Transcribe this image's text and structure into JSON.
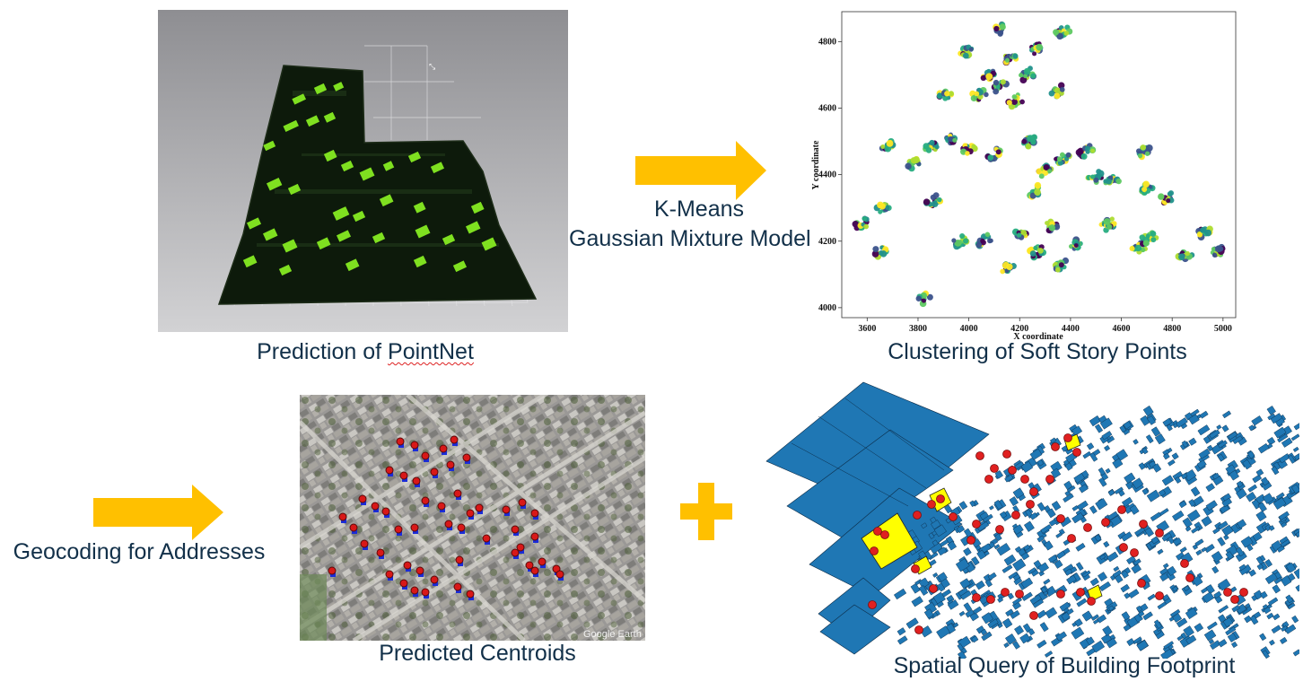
{
  "colors": {
    "arrow": "#FFC000",
    "plus": "#FFC000",
    "text": "#123049",
    "footprint": "#1F77B4",
    "highlight": "#FFFF00",
    "centroid": "#E02020",
    "prediction_green": "#7FE020"
  },
  "top_left": {
    "caption_prefix": "Prediction of ",
    "caption_word": "PointNet"
  },
  "top_arrow": {
    "label_line1": "K-Means",
    "label_line2": "Gaussian Mixture Model"
  },
  "top_right": {
    "caption": "Clustering of Soft Story Points"
  },
  "bottom_left": {
    "arrow_label": "Geocoding for Addresses"
  },
  "bottom_mid": {
    "caption": "Predicted Centroids",
    "watermark": "Google Earth"
  },
  "bottom_right": {
    "caption": "Spatial Query of Building Footprint"
  },
  "chart_data": {
    "type": "scatter",
    "title": "",
    "xlabel": "X coordinate",
    "ylabel": "Y coordinate",
    "xlim": [
      3500,
      5050
    ],
    "ylim": [
      3970,
      4890
    ],
    "xticks": [
      3600,
      3800,
      4000,
      4200,
      4400,
      4600,
      4800,
      5000
    ],
    "yticks": [
      4000,
      4200,
      4400,
      4600,
      4800
    ],
    "colormap": "viridis",
    "clusters": [
      {
        "x": 4130,
        "y": 4840
      },
      {
        "x": 4370,
        "y": 4830
      },
      {
        "x": 4270,
        "y": 4780
      },
      {
        "x": 3990,
        "y": 4770
      },
      {
        "x": 4160,
        "y": 4750
      },
      {
        "x": 4080,
        "y": 4700
      },
      {
        "x": 3910,
        "y": 4640
      },
      {
        "x": 4120,
        "y": 4670
      },
      {
        "x": 4040,
        "y": 4640
      },
      {
        "x": 4230,
        "y": 4700
      },
      {
        "x": 4180,
        "y": 4620
      },
      {
        "x": 4350,
        "y": 4650
      },
      {
        "x": 3850,
        "y": 4480
      },
      {
        "x": 3930,
        "y": 4510
      },
      {
        "x": 4000,
        "y": 4480
      },
      {
        "x": 4100,
        "y": 4460
      },
      {
        "x": 3780,
        "y": 4430
      },
      {
        "x": 4240,
        "y": 4500
      },
      {
        "x": 4300,
        "y": 4410
      },
      {
        "x": 4370,
        "y": 4450
      },
      {
        "x": 4460,
        "y": 4470
      },
      {
        "x": 4500,
        "y": 4390
      },
      {
        "x": 4560,
        "y": 4380
      },
      {
        "x": 4690,
        "y": 4470
      },
      {
        "x": 3680,
        "y": 4480
      },
      {
        "x": 3660,
        "y": 4300
      },
      {
        "x": 3580,
        "y": 4250
      },
      {
        "x": 3650,
        "y": 4170
      },
      {
        "x": 3860,
        "y": 4320
      },
      {
        "x": 3830,
        "y": 4030
      },
      {
        "x": 3970,
        "y": 4200
      },
      {
        "x": 4060,
        "y": 4200
      },
      {
        "x": 4150,
        "y": 4120
      },
      {
        "x": 4200,
        "y": 4220
      },
      {
        "x": 4270,
        "y": 4170
      },
      {
        "x": 4330,
        "y": 4250
      },
      {
        "x": 4360,
        "y": 4130
      },
      {
        "x": 4420,
        "y": 4190
      },
      {
        "x": 4550,
        "y": 4250
      },
      {
        "x": 4670,
        "y": 4180
      },
      {
        "x": 4710,
        "y": 4210
      },
      {
        "x": 4780,
        "y": 4330
      },
      {
        "x": 4850,
        "y": 4160
      },
      {
        "x": 4930,
        "y": 4230
      },
      {
        "x": 4980,
        "y": 4170
      },
      {
        "x": 4700,
        "y": 4360
      },
      {
        "x": 4260,
        "y": 4350
      }
    ]
  }
}
